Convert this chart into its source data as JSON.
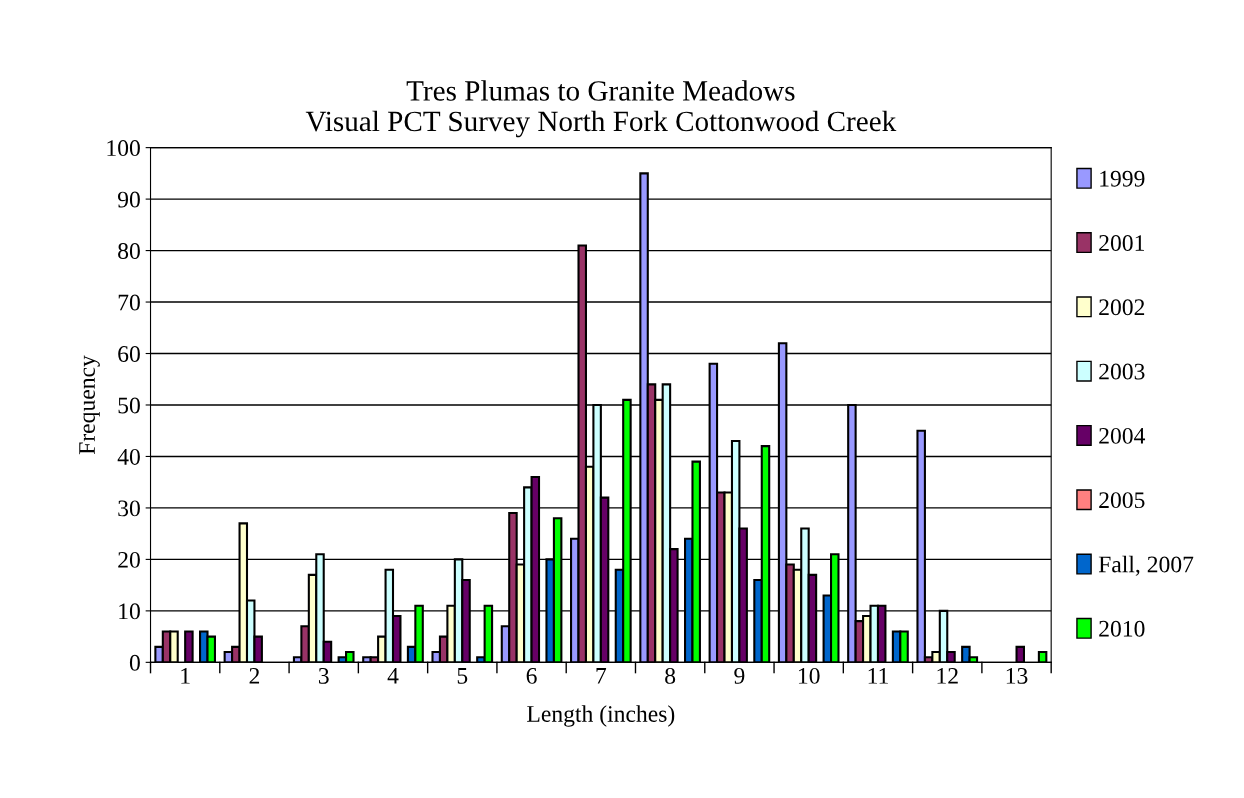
{
  "chart_data": {
    "type": "bar",
    "title": "Tres Plumas to Granite Meadows\nVisual PCT Survey North Fork Cottonwood Creek",
    "xlabel": "Length (inches)",
    "ylabel": "Frequency",
    "categories": [
      "1",
      "2",
      "3",
      "4",
      "5",
      "6",
      "7",
      "8",
      "9",
      "10",
      "11",
      "12",
      "13"
    ],
    "series": [
      {
        "name": "1999",
        "color": "#9999ff",
        "values": [
          3,
          2,
          1,
          1,
          2,
          7,
          24,
          95,
          58,
          62,
          50,
          45,
          0
        ]
      },
      {
        "name": "2001",
        "color": "#993366",
        "values": [
          6,
          3,
          7,
          1,
          5,
          29,
          81,
          54,
          33,
          19,
          8,
          1,
          0
        ]
      },
      {
        "name": "2002",
        "color": "#ffffcc",
        "values": [
          6,
          27,
          17,
          5,
          11,
          19,
          38,
          51,
          33,
          18,
          9,
          2,
          0
        ]
      },
      {
        "name": "2003",
        "color": "#ccffff",
        "values": [
          0,
          12,
          21,
          18,
          20,
          34,
          50,
          54,
          43,
          26,
          11,
          10,
          0
        ]
      },
      {
        "name": "2004",
        "color": "#660066",
        "values": [
          6,
          5,
          4,
          9,
          16,
          36,
          32,
          22,
          26,
          17,
          11,
          2,
          3
        ]
      },
      {
        "name": "2005",
        "color": "#ff8080",
        "values": [
          0,
          0,
          0,
          0,
          0,
          0,
          0,
          0,
          0,
          0,
          0,
          0,
          0
        ]
      },
      {
        "name": "Fall, 2007",
        "color": "#0066cc",
        "values": [
          6,
          0,
          1,
          3,
          1,
          20,
          18,
          24,
          16,
          13,
          6,
          3,
          0
        ]
      },
      {
        "name": "2010",
        "color": "#00ff00",
        "values": [
          5,
          0,
          2,
          11,
          11,
          28,
          51,
          39,
          42,
          21,
          6,
          1,
          2
        ]
      }
    ],
    "ylim": [
      0,
      100
    ],
    "yticks": [
      0,
      10,
      20,
      30,
      40,
      50,
      60,
      70,
      80,
      90,
      100
    ],
    "grid": "y",
    "legend": "right"
  }
}
